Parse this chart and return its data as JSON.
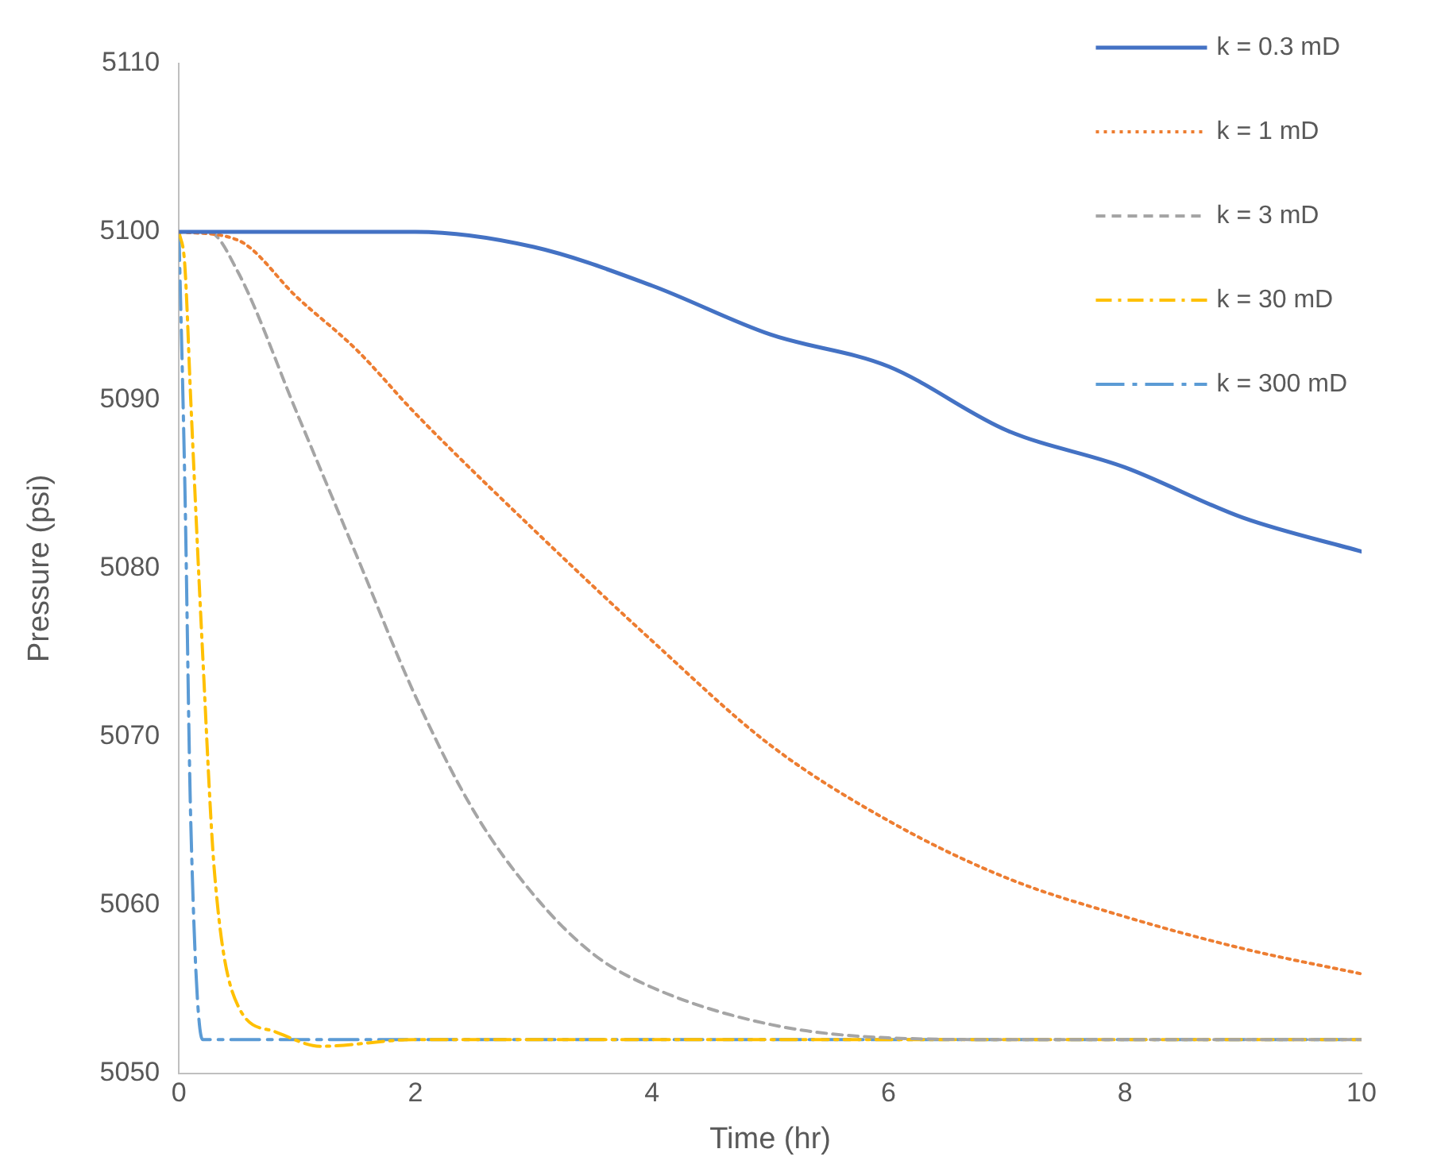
{
  "chart_data": {
    "type": "line",
    "xlabel": "Time (hr)",
    "ylabel": "Pressure (psi)",
    "xlim": [
      0,
      10
    ],
    "xticks": [
      0,
      2,
      4,
      6,
      8,
      10
    ],
    "ylim": [
      5050,
      5110
    ],
    "yticks": [
      5050,
      5060,
      5070,
      5080,
      5090,
      5100,
      5110
    ],
    "grid": false,
    "legend": "top right",
    "marker": "none",
    "series": [
      {
        "name": "k = 0.3 mD",
        "color": "#4472c4",
        "line_style": "solid",
        "x": [
          0,
          1,
          2,
          3,
          4,
          5,
          6,
          7,
          8,
          9,
          10
        ],
        "values": [
          5100,
          5100,
          5100,
          5099.1,
          5096.8,
          5093.9,
          5092,
          5088.2,
          5086,
          5083,
          5081
        ]
      },
      {
        "name": "k = 1 mD",
        "color": "#ed7d31",
        "line_style": "dotted",
        "x": [
          0,
          0.5,
          1,
          1.5,
          2,
          3,
          4,
          5,
          6,
          7,
          8,
          9,
          10
        ],
        "values": [
          5100,
          5099.5,
          5096.1,
          5093,
          5089.2,
          5082.3,
          5075.7,
          5069.5,
          5065,
          5061.6,
          5059.3,
          5057.4,
          5055.9
        ]
      },
      {
        "name": "k = 3 mD",
        "color": "#a5a5a5",
        "line_style": "dashed",
        "x": [
          0,
          0.25,
          0.5,
          1,
          1.5,
          2,
          2.5,
          3,
          3.5,
          4,
          5,
          6,
          7,
          8,
          9,
          10
        ],
        "values": [
          5100,
          5100,
          5097.6,
          5089.2,
          5080.8,
          5072.4,
          5065.5,
          5060.6,
          5057.1,
          5055.1,
          5052.9,
          5052.1,
          5052,
          5052,
          5052,
          5052
        ]
      },
      {
        "name": "k = 30 mD",
        "color": "#ffc000",
        "line_style": "dashdot",
        "x": [
          0,
          0.05,
          0.1,
          0.2,
          0.3,
          0.5,
          0.8,
          1.2,
          2,
          10
        ],
        "values": [
          5100,
          5098,
          5090,
          5075,
          5062,
          5054,
          5052.5,
          5051.6,
          5052,
          5052
        ]
      },
      {
        "name": "k = 300 mD",
        "color": "#5b9bd5",
        "line_style": "longdashdot",
        "x": [
          0,
          0.05,
          0.1,
          0.2,
          10
        ],
        "values": [
          5100,
          5085,
          5065,
          5052,
          5052
        ]
      }
    ]
  }
}
